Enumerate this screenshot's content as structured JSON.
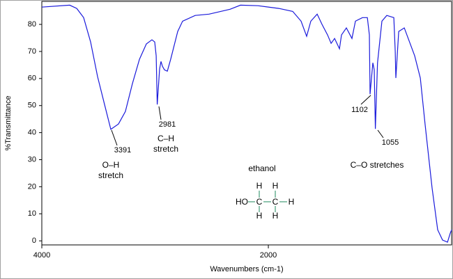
{
  "chart_data": {
    "type": "line",
    "x_label": "Wavenumbers (cm-1)",
    "y_label": "%Transmittance",
    "color": "#1a1adb",
    "xlim": [
      4000,
      382
    ],
    "ylim": [
      -1.5,
      88.5
    ],
    "xticks": [
      4000,
      2000
    ],
    "yticks": [
      0,
      10,
      20,
      30,
      40,
      50,
      60,
      70,
      80
    ],
    "x": [
      4000,
      3754,
      3692,
      3631,
      3569,
      3508,
      3446,
      3391,
      3323,
      3262,
      3200,
      3138,
      3077,
      3028,
      3003,
      2990,
      2981,
      2960,
      2948,
      2935,
      2917,
      2892,
      2862,
      2800,
      2757,
      2646,
      2523,
      2338,
      2246,
      2092,
      1908,
      1785,
      1711,
      1662,
      1625,
      1569,
      1526,
      1477,
      1446,
      1415,
      1372,
      1354,
      1311,
      1262,
      1231,
      1169,
      1126,
      1108,
      1102,
      1077,
      1065,
      1055,
      1036,
      997,
      954,
      892,
      880,
      874,
      849,
      800,
      708,
      658,
      615,
      554,
      505,
      462,
      418,
      394,
      382
    ],
    "values": [
      86.4,
      87.1,
      85.9,
      82.5,
      73.5,
      60.7,
      50.4,
      41.2,
      43.2,
      47.8,
      58.1,
      67.1,
      72.8,
      74.3,
      73.5,
      68.4,
      50.4,
      63.5,
      66.3,
      64.5,
      63.2,
      62.7,
      67.1,
      77.4,
      81.2,
      83.3,
      83.8,
      85.6,
      87.1,
      86.9,
      85.9,
      84.8,
      81.2,
      75.6,
      81.2,
      83.8,
      80.0,
      76.1,
      73.0,
      74.8,
      71.0,
      76.1,
      78.7,
      74.8,
      81.2,
      82.5,
      82.5,
      76.1,
      54.2,
      65.8,
      63.2,
      41.4,
      65.8,
      81.2,
      83.3,
      82.5,
      70.0,
      60.2,
      77.4,
      78.7,
      68.4,
      60.2,
      42.7,
      19.5,
      4.1,
      0.3,
      -0.5,
      2.8,
      4.1
    ],
    "annotations": [
      {
        "text": "3391"
      },
      {
        "text": "2981"
      },
      {
        "text": "1102"
      },
      {
        "text": "1055"
      },
      {
        "lines": [
          "O–H",
          "stretch"
        ],
        "color": "#e8141c"
      },
      {
        "lines": [
          "C–H",
          "stretch"
        ],
        "color": "#e8141c"
      },
      {
        "lines": [
          "C–O stretches"
        ],
        "color": "#e8141c"
      },
      {
        "lines": [
          "ethanol"
        ],
        "color": "#000000"
      }
    ]
  },
  "molecule": {
    "color": "#1d8a5e",
    "hydroxyl": "HO",
    "carbon": "C",
    "hydrogen": "H"
  }
}
